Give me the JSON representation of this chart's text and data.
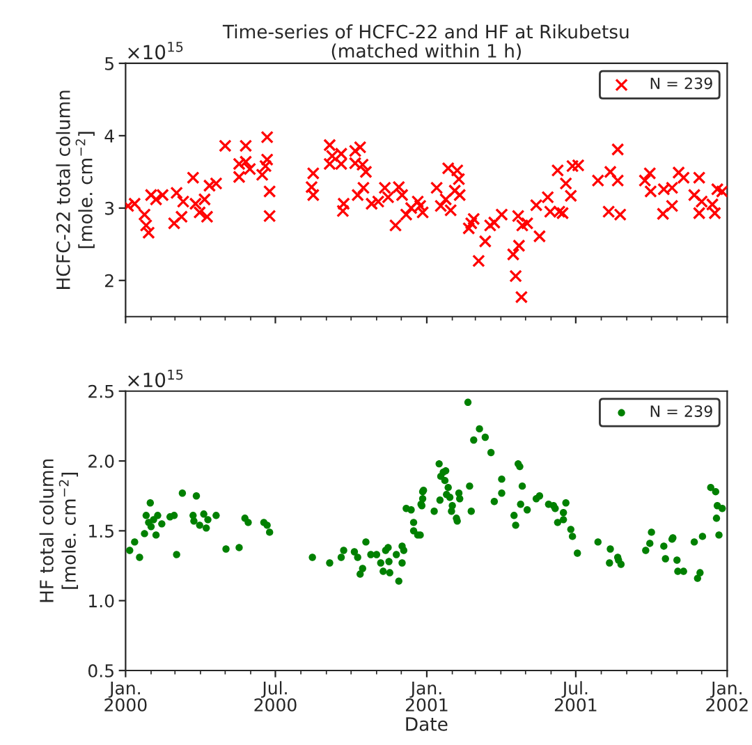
{
  "chart_data": [
    {
      "type": "scatter",
      "title": "Time-series of HCFC-22 and HF at Rikubetsu\n(matched within 1 h)",
      "ylabel": "HCFC-22 total column\n[mole. cm$^{−2}$]",
      "annotations": [
        "×10$^{15}$"
      ],
      "marker": "cross",
      "legend": "top right",
      "grid": false,
      "tick_labels": "y",
      "xlim": [
        "2000-01-01",
        "2002-01-01"
      ],
      "xticks": [
        {
          "value": "2000-01-01",
          "label": null
        },
        {
          "value": "2000-07-01",
          "label": null
        },
        {
          "value": "2001-01-01",
          "label": null
        },
        {
          "value": "2001-07-01",
          "label": null
        },
        {
          "value": "2002-01-01",
          "label": null
        }
      ],
      "ylim": [
        1.5,
        5
      ],
      "yticks": [
        2,
        3,
        4,
        5
      ],
      "series": [
        {
          "name": "N = 239",
          "color": "#ff0000",
          "x": [
            "2000-01-04",
            "2000-01-12",
            "2000-01-24",
            "2000-01-26",
            "2000-01-29",
            "2000-02-01",
            "2000-02-07",
            "2000-02-15",
            "2000-02-29",
            "2000-03-03",
            "2000-03-09",
            "2000-03-11",
            "2000-03-23",
            "2000-03-26",
            "2000-03-31",
            "2000-04-06",
            "2000-04-09",
            "2000-04-12",
            "2000-04-20",
            "2000-05-01",
            "2000-05-18",
            "2000-05-18",
            "2000-05-26",
            "2000-05-26",
            "2000-05-31",
            "2000-06-15",
            "2000-06-21",
            "2000-06-21",
            "2000-06-19",
            "2000-06-24",
            "2000-06-24",
            "2000-08-14",
            "2000-08-16",
            "2000-08-16",
            "2000-09-05",
            "2000-09-05",
            "2000-09-08",
            "2000-09-19",
            "2000-09-19",
            "2000-09-22",
            "2000-09-21",
            "2000-10-06",
            "2000-10-06",
            "2000-10-12",
            "2000-10-15",
            "2000-10-19",
            "2000-10-09",
            "2000-10-16",
            "2000-10-26",
            "2000-11-03",
            "2000-11-11",
            "2000-11-15",
            "2000-11-24",
            "2000-11-28",
            "2000-12-02",
            "2000-12-07",
            "2000-12-13",
            "2000-12-21",
            "2000-12-27",
            "2000-12-24",
            "2001-01-13",
            "2001-01-18",
            "2001-01-24",
            "2001-01-27",
            "2001-01-30",
            "2001-02-04",
            "2001-02-07",
            "2001-02-09",
            "2001-02-10",
            "2001-02-21",
            "2001-02-24",
            "2001-02-27",
            "2001-03-05",
            "2001-03-13",
            "2001-03-19",
            "2001-03-24",
            "2001-04-02",
            "2001-04-16",
            "2001-04-19",
            "2001-04-22",
            "2001-04-23",
            "2001-04-26",
            "2001-04-27",
            "2001-05-03",
            "2001-05-14",
            "2001-05-18",
            "2001-05-28",
            "2001-05-31",
            "2001-06-09",
            "2001-06-11",
            "2001-06-15",
            "2001-06-19",
            "2001-06-25",
            "2001-06-27",
            "2001-07-04",
            "2001-07-28",
            "2001-08-10",
            "2001-08-12",
            "2001-08-21",
            "2001-08-21",
            "2001-08-24",
            "2001-09-23",
            "2001-09-29",
            "2001-09-30",
            "2001-10-15",
            "2001-10-16",
            "2001-10-26",
            "2001-10-26",
            "2001-11-03",
            "2001-11-09",
            "2001-11-22",
            "2001-11-28",
            "2001-11-28",
            "2001-12-01",
            "2001-12-14",
            "2001-12-17",
            "2001-12-20",
            "2001-12-26"
          ],
          "values": [
            3.03,
            3.06,
            2.91,
            2.76,
            2.66,
            3.18,
            3.12,
            3.18,
            2.79,
            3.21,
            2.88,
            3.09,
            3.42,
            3.06,
            2.94,
            3.12,
            2.88,
            3.31,
            3.34,
            3.86,
            3.61,
            3.43,
            3.86,
            3.64,
            3.54,
            3.46,
            3.98,
            3.67,
            3.58,
            3.23,
            2.89,
            3.29,
            3.48,
            3.18,
            3.87,
            3.61,
            3.72,
            3.75,
            3.61,
            3.06,
            2.96,
            3.79,
            3.62,
            3.84,
            3.6,
            3.5,
            3.18,
            3.28,
            3.06,
            3.09,
            3.28,
            3.15,
            2.76,
            3.29,
            3.18,
            2.91,
            3.0,
            3.09,
            2.94,
            3.03,
            3.28,
            3.03,
            3.12,
            3.55,
            2.97,
            3.24,
            3.52,
            3.4,
            3.18,
            2.72,
            2.79,
            2.85,
            2.27,
            2.54,
            2.76,
            2.8,
            2.91,
            2.36,
            2.06,
            2.89,
            2.48,
            1.77,
            2.76,
            2.79,
            3.04,
            2.61,
            3.15,
            2.95,
            3.52,
            2.95,
            2.93,
            3.34,
            3.17,
            3.58,
            3.59,
            3.38,
            2.95,
            3.5,
            3.81,
            3.38,
            2.91,
            3.38,
            3.48,
            3.23,
            2.92,
            3.26,
            3.03,
            3.28,
            3.49,
            3.42,
            3.18,
            3.42,
            2.93,
            3.09,
            3.05,
            2.93,
            3.26,
            3.23
          ]
        }
      ]
    },
    {
      "type": "scatter",
      "xlabel": "Date",
      "ylabel": "HF total column\n[mole. cm$^{−2}$]",
      "annotations": [
        "×10$^{15}$"
      ],
      "marker": "circle",
      "legend": "top right",
      "grid": false,
      "xlim": [
        "2000-01-01",
        "2002-01-01"
      ],
      "xticks": [
        {
          "value": "2000-01-01",
          "label": "Jan.\n2000"
        },
        {
          "value": "2000-07-01",
          "label": "Jul.\n2000"
        },
        {
          "value": "2001-01-01",
          "label": "Jan.\n2001"
        },
        {
          "value": "2001-07-01",
          "label": "Jul.\n2001"
        },
        {
          "value": "2002-01-01",
          "label": "Jan.\n2002"
        }
      ],
      "ylim": [
        0.5,
        2.5
      ],
      "yticks": [
        0.5,
        {
          "value": 1.0,
          "label": "1.0"
        },
        1.5,
        {
          "value": 2.0,
          "label": "2.0"
        },
        2.5
      ],
      "series": [
        {
          "name": "N = 239",
          "color": "#008000",
          "x": [
            "2000-01-06",
            "2000-01-12",
            "2000-01-18",
            "2000-01-24",
            "2000-01-26",
            "2000-01-29",
            "2000-01-31",
            "2000-02-01",
            "2000-02-04",
            "2000-02-07",
            "2000-02-09",
            "2000-02-14",
            "2000-02-24",
            "2000-02-29",
            "2000-03-03",
            "2000-03-10",
            "2000-03-23",
            "2000-03-24",
            "2000-03-27",
            "2000-03-31",
            "2000-04-05",
            "2000-04-08",
            "2000-04-10",
            "2000-04-20",
            "2000-05-02",
            "2000-05-18",
            "2000-05-25",
            "2000-05-29",
            "2000-06-17",
            "2000-06-21",
            "2000-06-24",
            "2000-08-15",
            "2000-09-05",
            "2000-09-19",
            "2000-09-22",
            "2000-10-05",
            "2000-10-09",
            "2000-10-12",
            "2000-10-15",
            "2000-10-19",
            "2000-10-25",
            "2000-11-01",
            "2000-11-06",
            "2000-11-09",
            "2000-11-12",
            "2000-11-15",
            "2000-11-17",
            "2000-11-16",
            "2000-11-25",
            "2000-11-28",
            "2000-12-02",
            "2000-12-02",
            "2000-12-04",
            "2000-12-07",
            "2000-12-13",
            "2000-12-16",
            "2000-12-16",
            "2000-12-21",
            "2000-12-25",
            "2000-12-27",
            "2000-12-24",
            "2000-12-26",
            "2000-12-27",
            "2000-12-28",
            "2001-01-10",
            "2001-01-16",
            "2001-01-17",
            "2001-01-18",
            "2001-01-21",
            "2001-01-23",
            "2001-01-24",
            "2001-01-25",
            "2001-01-27",
            "2001-01-29",
            "2001-01-31",
            "2001-02-01",
            "2001-02-06",
            "2001-02-07",
            "2001-02-09",
            "2001-02-10",
            "2001-02-20",
            "2001-02-22",
            "2001-02-24",
            "2001-02-27",
            "2001-03-06",
            "2001-03-13",
            "2001-03-20",
            "2001-03-24",
            "2001-04-02",
            "2001-04-02",
            "2001-04-17",
            "2001-04-19",
            "2001-04-22",
            "2001-04-24",
            "2001-04-27",
            "2001-04-25",
            "2001-05-03",
            "2001-05-14",
            "2001-05-18",
            "2001-05-29",
            "2001-06-04",
            "2001-06-06",
            "2001-06-09",
            "2001-06-16",
            "2001-06-16",
            "2001-06-19",
            "2001-06-25",
            "2001-06-27",
            "2001-07-03",
            "2001-07-28",
            "2001-08-12",
            "2001-08-11",
            "2001-08-21",
            "2001-08-22",
            "2001-08-25",
            "2001-09-24",
            "2001-09-29",
            "2001-10-01",
            "2001-10-16",
            "2001-10-18",
            "2001-10-26",
            "2001-10-27",
            "2001-11-01",
            "2001-11-02",
            "2001-11-09",
            "2001-11-22",
            "2001-11-26",
            "2001-11-29",
            "2001-12-02",
            "2001-12-12",
            "2001-12-18",
            "2001-12-20",
            "2001-12-19",
            "2001-12-22",
            "2001-12-26"
          ],
          "values": [
            1.36,
            1.42,
            1.31,
            1.48,
            1.61,
            1.56,
            1.7,
            1.53,
            1.58,
            1.47,
            1.61,
            1.55,
            1.6,
            1.61,
            1.33,
            1.77,
            1.61,
            1.57,
            1.75,
            1.54,
            1.62,
            1.52,
            1.58,
            1.61,
            1.37,
            1.38,
            1.59,
            1.56,
            1.56,
            1.54,
            1.49,
            1.31,
            1.27,
            1.31,
            1.36,
            1.35,
            1.31,
            1.19,
            1.23,
            1.42,
            1.33,
            1.33,
            1.27,
            1.21,
            1.36,
            1.38,
            1.2,
            1.28,
            1.33,
            1.14,
            1.27,
            1.39,
            1.36,
            1.66,
            1.65,
            1.56,
            1.5,
            1.47,
            1.69,
            1.78,
            1.47,
            1.68,
            1.73,
            1.79,
            1.64,
            1.98,
            1.72,
            1.89,
            1.92,
            1.86,
            1.93,
            1.76,
            1.81,
            1.74,
            1.64,
            1.68,
            1.59,
            1.57,
            1.77,
            1.73,
            2.42,
            1.82,
            1.64,
            2.15,
            2.23,
            2.17,
            2.06,
            1.71,
            1.87,
            1.77,
            1.61,
            1.54,
            1.98,
            1.96,
            1.82,
            1.69,
            1.65,
            1.73,
            1.75,
            1.69,
            1.68,
            1.66,
            1.56,
            1.63,
            1.58,
            1.7,
            1.51,
            1.46,
            1.34,
            1.42,
            1.37,
            1.27,
            1.31,
            1.29,
            1.26,
            1.36,
            1.41,
            1.49,
            1.39,
            1.3,
            1.44,
            1.45,
            1.29,
            1.21,
            1.21,
            1.42,
            1.16,
            1.2,
            1.46,
            1.81,
            1.78,
            1.68,
            1.59,
            1.47,
            1.66
          ]
        }
      ]
    }
  ]
}
